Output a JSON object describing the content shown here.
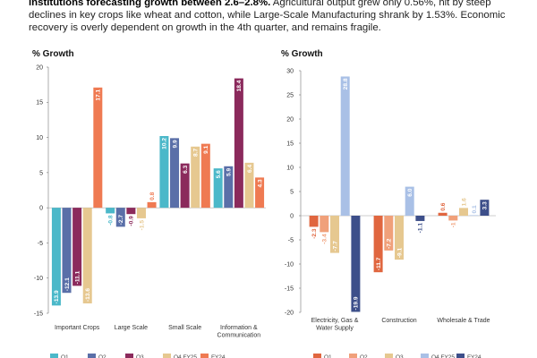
{
  "intro": {
    "bold": "institutions forecasting growth between 2.6–2.8%.",
    "rest": " Agricultural output grew only 0.56%, hit by steep declines in key crops like wheat and cotton, while Large-Scale Manufacturing shrank by 1.53%. Economic recovery is overly dependent on growth in the 4th quarter, and remains fragile."
  },
  "chart_data": [
    {
      "type": "bar",
      "ylabel": "% Growth",
      "ylim": [
        -15,
        20
      ],
      "yticks": [
        -15,
        -10,
        -5,
        0,
        5,
        10,
        15,
        20
      ],
      "categories": [
        "Important Crops",
        "Large Scale",
        "Small Scale",
        "Information & Communication"
      ],
      "series": [
        {
          "name": "Q1",
          "color": "#4bb8c9",
          "values": [
            -13.9,
            -0.8,
            10.2,
            5.6
          ]
        },
        {
          "name": "Q2",
          "color": "#5a6fa8",
          "values": [
            -12.1,
            -2.7,
            9.9,
            5.9
          ]
        },
        {
          "name": "Q3",
          "color": "#8b2a5c",
          "values": [
            -11.1,
            -0.9,
            6.3,
            18.4
          ]
        },
        {
          "name": "Q4 FY25",
          "color": "#e6c890",
          "values": [
            -13.6,
            -1.5,
            8.7,
            6.4
          ]
        },
        {
          "name": "FY24",
          "color": "#ef7a52",
          "values": [
            17.1,
            0.8,
            9.1,
            4.3
          ]
        }
      ],
      "data_labels": [
        [
          "-13.9",
          "-0.8",
          "10.2",
          "5.6"
        ],
        [
          "-12.1",
          "-2.7",
          "9.9",
          "5.9"
        ],
        [
          "-11.1",
          "-0.9",
          "6.3",
          "18.4"
        ],
        [
          "-13.6",
          "-1.5",
          "8.7",
          "6.4"
        ],
        [
          "17.1",
          "0.8",
          "9.1",
          "4.3"
        ]
      ],
      "legend_position": "bottom"
    },
    {
      "type": "bar",
      "ylabel": "% Growth",
      "ylim": [
        -20,
        30
      ],
      "yticks": [
        -20,
        -15,
        -10,
        -5,
        0,
        5,
        10,
        15,
        20,
        25,
        30
      ],
      "categories": [
        "Electricity, Gas & Water Supply",
        "Construction",
        "Wholesale & Trade"
      ],
      "series": [
        {
          "name": "Q1",
          "color": "#e0663f",
          "values": [
            -2.3,
            -11.7,
            0.6
          ]
        },
        {
          "name": "Q2",
          "color": "#f0a07a",
          "values": [
            -3.4,
            -7.2,
            -1.0
          ]
        },
        {
          "name": "Q3",
          "color": "#e6c890",
          "values": [
            -7.7,
            -9.1,
            1.6
          ]
        },
        {
          "name": "Q4 FY25",
          "color": "#a9c0e6",
          "values": [
            28.8,
            6.0,
            0.1
          ]
        },
        {
          "name": "FY24",
          "color": "#3d4f8a",
          "values": [
            -19.9,
            -1.1,
            3.3
          ]
        }
      ],
      "data_labels": [
        [
          "-2.3",
          "-11.7",
          "0.6"
        ],
        [
          "-3.4",
          "-7.2",
          "-1"
        ],
        [
          "-7.7",
          "-9.1",
          "1.6"
        ],
        [
          "28.8",
          "6.0",
          "0.1"
        ],
        [
          "-19.9",
          "-1.1",
          "3.3"
        ]
      ],
      "legend_position": "bottom"
    }
  ]
}
